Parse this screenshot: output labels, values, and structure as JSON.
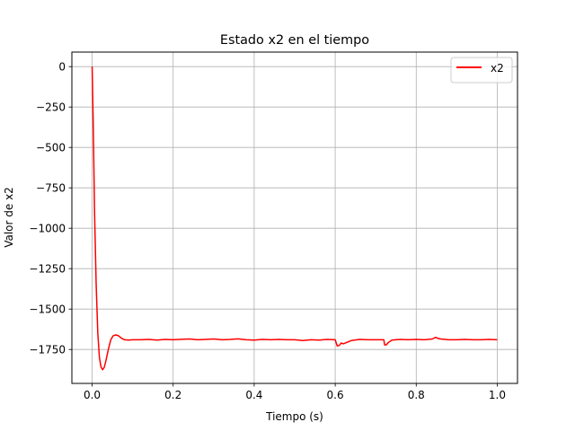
{
  "chart_data": {
    "type": "line",
    "title": "Estado x2 en el tiempo",
    "xlabel": "Tiempo (s)",
    "ylabel": "Valor de x2",
    "xlim": [
      -0.05,
      1.05
    ],
    "ylim": [
      -1960,
      90
    ],
    "grid": true,
    "legend": {
      "placement": "top-right"
    },
    "x_ticks": [
      {
        "value": 0.0,
        "label": "0.0"
      },
      {
        "value": 0.2,
        "label": "0.2"
      },
      {
        "value": 0.4,
        "label": "0.4"
      },
      {
        "value": 0.6,
        "label": "0.6"
      },
      {
        "value": 0.8,
        "label": "0.8"
      },
      {
        "value": 1.0,
        "label": "1.0"
      }
    ],
    "y_ticks": [
      {
        "value": 0,
        "label": "0"
      },
      {
        "value": -250,
        "label": "−250"
      },
      {
        "value": -500,
        "label": "−500"
      },
      {
        "value": -750,
        "label": "−750"
      },
      {
        "value": -1000,
        "label": "−1000"
      },
      {
        "value": -1250,
        "label": "−1250"
      },
      {
        "value": -1500,
        "label": "−1500"
      },
      {
        "value": -1750,
        "label": "−1750"
      }
    ],
    "series": [
      {
        "name": "x2",
        "color": "#ff0000",
        "x": [
          0.0,
          0.003,
          0.006,
          0.01,
          0.014,
          0.018,
          0.022,
          0.026,
          0.03,
          0.034,
          0.04,
          0.046,
          0.052,
          0.058,
          0.065,
          0.072,
          0.08,
          0.09,
          0.1,
          0.12,
          0.14,
          0.16,
          0.18,
          0.2,
          0.22,
          0.24,
          0.26,
          0.28,
          0.3,
          0.32,
          0.34,
          0.36,
          0.38,
          0.4,
          0.42,
          0.44,
          0.46,
          0.48,
          0.5,
          0.52,
          0.54,
          0.56,
          0.58,
          0.6,
          0.605,
          0.61,
          0.615,
          0.62,
          0.63,
          0.64,
          0.66,
          0.68,
          0.7,
          0.72,
          0.722,
          0.726,
          0.73,
          0.735,
          0.74,
          0.76,
          0.78,
          0.8,
          0.82,
          0.84,
          0.848,
          0.852,
          0.86,
          0.88,
          0.9,
          0.92,
          0.94,
          0.96,
          0.98,
          1.0
        ],
        "y": [
          0,
          -400,
          -900,
          -1350,
          -1650,
          -1800,
          -1860,
          -1875,
          -1860,
          -1820,
          -1750,
          -1690,
          -1665,
          -1660,
          -1665,
          -1680,
          -1690,
          -1692,
          -1690,
          -1690,
          -1688,
          -1692,
          -1688,
          -1690,
          -1687,
          -1685,
          -1690,
          -1688,
          -1685,
          -1690,
          -1688,
          -1684,
          -1690,
          -1692,
          -1688,
          -1690,
          -1688,
          -1690,
          -1690,
          -1695,
          -1690,
          -1692,
          -1688,
          -1690,
          -1728,
          -1725,
          -1710,
          -1715,
          -1705,
          -1695,
          -1688,
          -1690,
          -1690,
          -1690,
          -1722,
          -1722,
          -1710,
          -1700,
          -1692,
          -1688,
          -1690,
          -1688,
          -1690,
          -1685,
          -1675,
          -1680,
          -1685,
          -1690,
          -1690,
          -1688,
          -1690,
          -1690,
          -1688,
          -1690
        ]
      }
    ]
  }
}
